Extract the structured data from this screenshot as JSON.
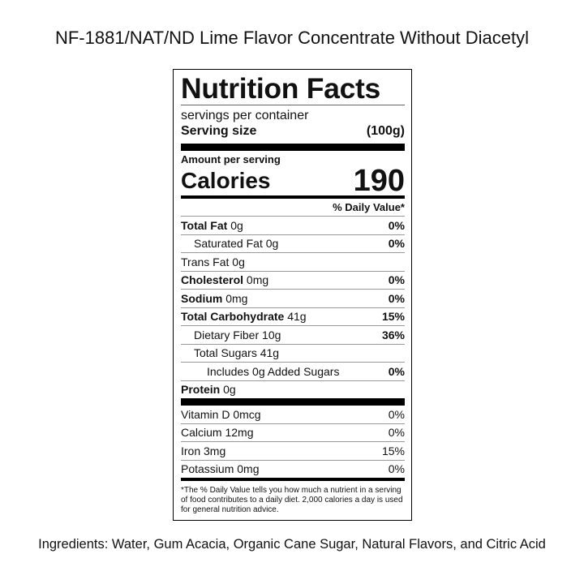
{
  "title": "NF-1881/NAT/ND Lime Flavor Concentrate Without Diacetyl",
  "label": {
    "heading": "Nutrition Facts",
    "servings": "servings per container",
    "serving_size_label": "Serving size",
    "serving_size": "(100g)",
    "amount_per_serving": "Amount per serving",
    "calories_label": "Calories",
    "calories": 190,
    "daily_value_header": "% Daily Value*",
    "nutrients": [
      {
        "name": "Total Fat",
        "amount": "0g",
        "dv": "0%"
      },
      {
        "name": "Saturated Fat",
        "amount": "0g",
        "dv": "0%"
      },
      {
        "name": "Trans Fat",
        "amount": "0g"
      },
      {
        "name": "Cholesterol",
        "amount": "0mg",
        "dv": "0%"
      },
      {
        "name": "Sodium",
        "amount": "0mg",
        "dv": "0%"
      },
      {
        "name": "Total Carbohydrate",
        "amount": "41g",
        "dv": "15%"
      },
      {
        "name": "Dietary Fiber",
        "amount": "10g",
        "dv": "36%"
      },
      {
        "name": "Total Sugars",
        "amount": "41g"
      },
      {
        "name": "Includes 0g Added Sugars",
        "dv": "0%"
      },
      {
        "name": "Protein",
        "amount": "0g"
      }
    ],
    "vitamins": [
      {
        "name": "Vitamin D",
        "amount": "0mcg",
        "dv": "0%"
      },
      {
        "name": "Calcium",
        "amount": "12mg",
        "dv": "0%"
      },
      {
        "name": "Iron",
        "amount": "3mg",
        "dv": "15%"
      },
      {
        "name": "Potassium",
        "amount": "0mg",
        "dv": "0%"
      }
    ],
    "footnote": "*The % Daily Value tells you how much a nutrient in a serving of food contributes to a daily diet. 2,000 calories a day is used for general nutrition advice."
  },
  "ingredients": "Ingredients: Water, Gum Acacia, Organic Cane Sugar, Natural Flavors, and Citric Acid"
}
